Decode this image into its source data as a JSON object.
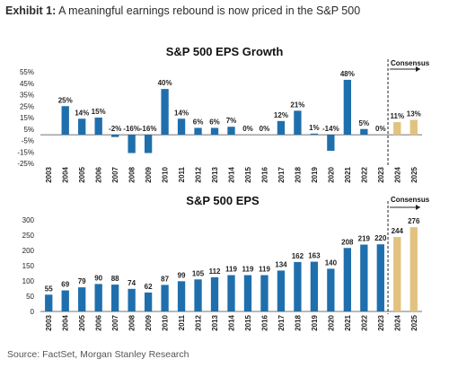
{
  "header": {
    "exhibit_label": "Exhibit 1:",
    "exhibit_title": "A meaningful earnings rebound is now priced in the S&P 500"
  },
  "footer": {
    "source": "Source: FactSet, Morgan Stanley Research"
  },
  "colors": {
    "actual": "#1f6fad",
    "consensus": "#e2c27e",
    "axis": "#444444"
  },
  "chart_data": [
    {
      "type": "bar",
      "title": "S&P 500 EPS Growth",
      "annotation": "Consensus",
      "xlabel": "",
      "ylabel": "",
      "ylim": [
        -25,
        55
      ],
      "yticks": [
        "55%",
        "45%",
        "35%",
        "25%",
        "15%",
        "5%",
        "-5%",
        "-15%",
        "-25%"
      ],
      "ytick_values": [
        55,
        45,
        35,
        25,
        15,
        5,
        -5,
        -15,
        -25
      ],
      "categories": [
        "2003",
        "2004",
        "2005",
        "2006",
        "2007",
        "2008",
        "2009",
        "2010",
        "2011",
        "2012",
        "2013",
        "2014",
        "2015",
        "2016",
        "2017",
        "2018",
        "2019",
        "2020",
        "2021",
        "2022",
        "2023",
        "2024",
        "2025"
      ],
      "values": [
        null,
        25,
        14,
        15,
        -2,
        -16,
        -16,
        40,
        14,
        6,
        6,
        7,
        0,
        0,
        12,
        21,
        1,
        -14,
        48,
        5,
        0,
        11,
        13
      ],
      "labels": [
        "",
        "25%",
        "14%",
        "15%",
        "-2%",
        "-16%",
        "-16%",
        "40%",
        "14%",
        "6%",
        "6%",
        "7%",
        "0%",
        "0%",
        "12%",
        "21%",
        "1%",
        "-14%",
        "48%",
        "5%",
        "0%",
        "11%",
        "13%"
      ],
      "consensus_categories": [
        "2024",
        "2025"
      ]
    },
    {
      "type": "bar",
      "title": "S&P 500 EPS",
      "annotation": "Consensus",
      "xlabel": "",
      "ylabel": "",
      "ylim": [
        0,
        300
      ],
      "yticks": [
        "300",
        "250",
        "200",
        "150",
        "100",
        "50",
        "0"
      ],
      "ytick_values": [
        300,
        250,
        200,
        150,
        100,
        50,
        0
      ],
      "categories": [
        "2003",
        "2004",
        "2005",
        "2006",
        "2007",
        "2008",
        "2009",
        "2010",
        "2011",
        "2012",
        "2013",
        "2014",
        "2015",
        "2016",
        "2017",
        "2018",
        "2019",
        "2020",
        "2021",
        "2022",
        "2023",
        "2024",
        "2025"
      ],
      "values": [
        55,
        69,
        79,
        90,
        88,
        74,
        62,
        87,
        99,
        105,
        112,
        119,
        119,
        119,
        134,
        162,
        163,
        140,
        208,
        219,
        220,
        244,
        276
      ],
      "labels": [
        "55",
        "69",
        "79",
        "90",
        "88",
        "74",
        "62",
        "87",
        "99",
        "105",
        "112",
        "119",
        "119",
        "119",
        "134",
        "162",
        "163",
        "140",
        "208",
        "219",
        "220",
        "244",
        "276"
      ],
      "consensus_categories": [
        "2024",
        "2025"
      ]
    }
  ]
}
